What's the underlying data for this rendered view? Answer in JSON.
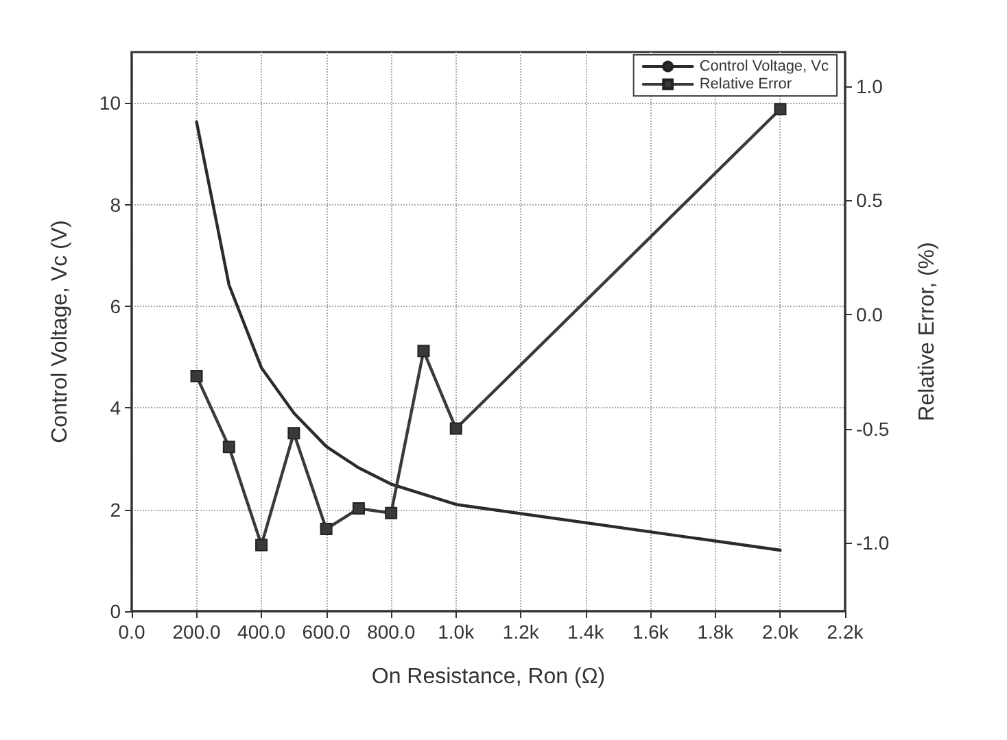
{
  "chart_data": {
    "type": "line",
    "xlabel": "On Resistance, Ron (Ω)",
    "ylabel": "Control Voltage, Vc (V)",
    "y2label": "Relative Error, (%)",
    "x": [
      200,
      300,
      400,
      500,
      600,
      700,
      800,
      900,
      1000,
      2000
    ],
    "series": [
      {
        "name": "Control Voltage, Vc",
        "color": "#2b2b2b",
        "marker": "none",
        "values": [
          9.63,
          6.42,
          4.79,
          3.9,
          3.24,
          2.82,
          2.5,
          2.3,
          2.1,
          1.2
        ]
      },
      {
        "name": "Relative Error",
        "color": "#3a3a3a",
        "marker": "square",
        "axis": "y2",
        "values": [
          -0.27,
          -0.58,
          -1.01,
          -0.52,
          -0.94,
          -0.85,
          -0.87,
          -0.16,
          -0.5,
          0.9
        ]
      }
    ],
    "xlim": [
      0,
      2200
    ],
    "xticks": [
      {
        "value": 0,
        "label": "0.0"
      },
      {
        "value": 200,
        "label": "200.0"
      },
      {
        "value": 400,
        "label": "400.0"
      },
      {
        "value": 600,
        "label": "600.0"
      },
      {
        "value": 800,
        "label": "800.0"
      },
      {
        "value": 1000,
        "label": "1.0k"
      },
      {
        "value": 1200,
        "label": "1.2k"
      },
      {
        "value": 1400,
        "label": "1.4k"
      },
      {
        "value": 1600,
        "label": "1.6k"
      },
      {
        "value": 1800,
        "label": "1.8k"
      },
      {
        "value": 2000,
        "label": "2.0k"
      },
      {
        "value": 2200,
        "label": "2.2k"
      }
    ],
    "ylim": [
      0,
      11
    ],
    "yticks": [
      0,
      2,
      4,
      6,
      8,
      10
    ],
    "y2lim": [
      -1.3,
      1.15
    ],
    "y2ticks": [
      {
        "value": -1,
        "label": "-1.0"
      },
      {
        "value": -0.5,
        "label": "-0.5"
      },
      {
        "value": 0,
        "label": "0.0"
      },
      {
        "value": 0.5,
        "label": "0.5"
      },
      {
        "value": 1,
        "label": "1.0"
      }
    ],
    "grid": true,
    "legend": "top right",
    "line_style": "solid"
  }
}
